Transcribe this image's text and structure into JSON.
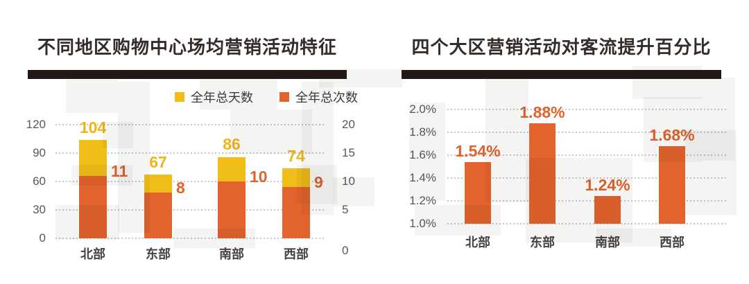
{
  "colors": {
    "days_yellow": "#F1BD19",
    "times_orange": "#E2632E",
    "value_label_yellow": "#F0B51A",
    "divider_dark": "#231815",
    "title_text": "#332C29",
    "axis_text": "#595757",
    "category_text": "#474140",
    "gridline": "#C6C6C6"
  },
  "chart_data": [
    {
      "type": "bar",
      "title": "不同地区购物中心场均营销活动特征",
      "categories": [
        "北部",
        "东部",
        "南部",
        "西部"
      ],
      "series": [
        {
          "name": "全年总天数",
          "axis": "left",
          "values": [
            104,
            67,
            86,
            74
          ],
          "color": "#F1BD19"
        },
        {
          "name": "全年总次数",
          "axis": "right",
          "values": [
            11,
            8,
            10,
            9
          ],
          "color": "#E2632E"
        }
      ],
      "left_axis": {
        "ticks": [
          0,
          30,
          60,
          90,
          120
        ],
        "min": 0,
        "max": 120
      },
      "right_axis": {
        "ticks": [
          0,
          5,
          10,
          15,
          20
        ],
        "min": 0,
        "max": 20
      },
      "legend_position": "top-right",
      "grid": "horizontal-dotted",
      "bar_style": "overlay-orange-in-front-of-yellow"
    },
    {
      "type": "bar",
      "title": "四个大区营销活动对客流提升百分比",
      "categories": [
        "北部",
        "东部",
        "南部",
        "西部"
      ],
      "values": [
        1.54,
        1.88,
        1.24,
        1.68
      ],
      "value_labels": [
        "1.54%",
        "1.88%",
        "1.24%",
        "1.68%"
      ],
      "y_axis": {
        "tick_labels": [
          "1.0%",
          "1.2%",
          "1.4%",
          "1.6%",
          "1.8%",
          "2.0%"
        ],
        "tick_values": [
          1.0,
          1.2,
          1.4,
          1.6,
          1.8,
          2.0
        ],
        "min": 1.0,
        "max": 2.0
      },
      "bar_color": "#E2632E",
      "grid": "horizontal-dotted"
    }
  ]
}
